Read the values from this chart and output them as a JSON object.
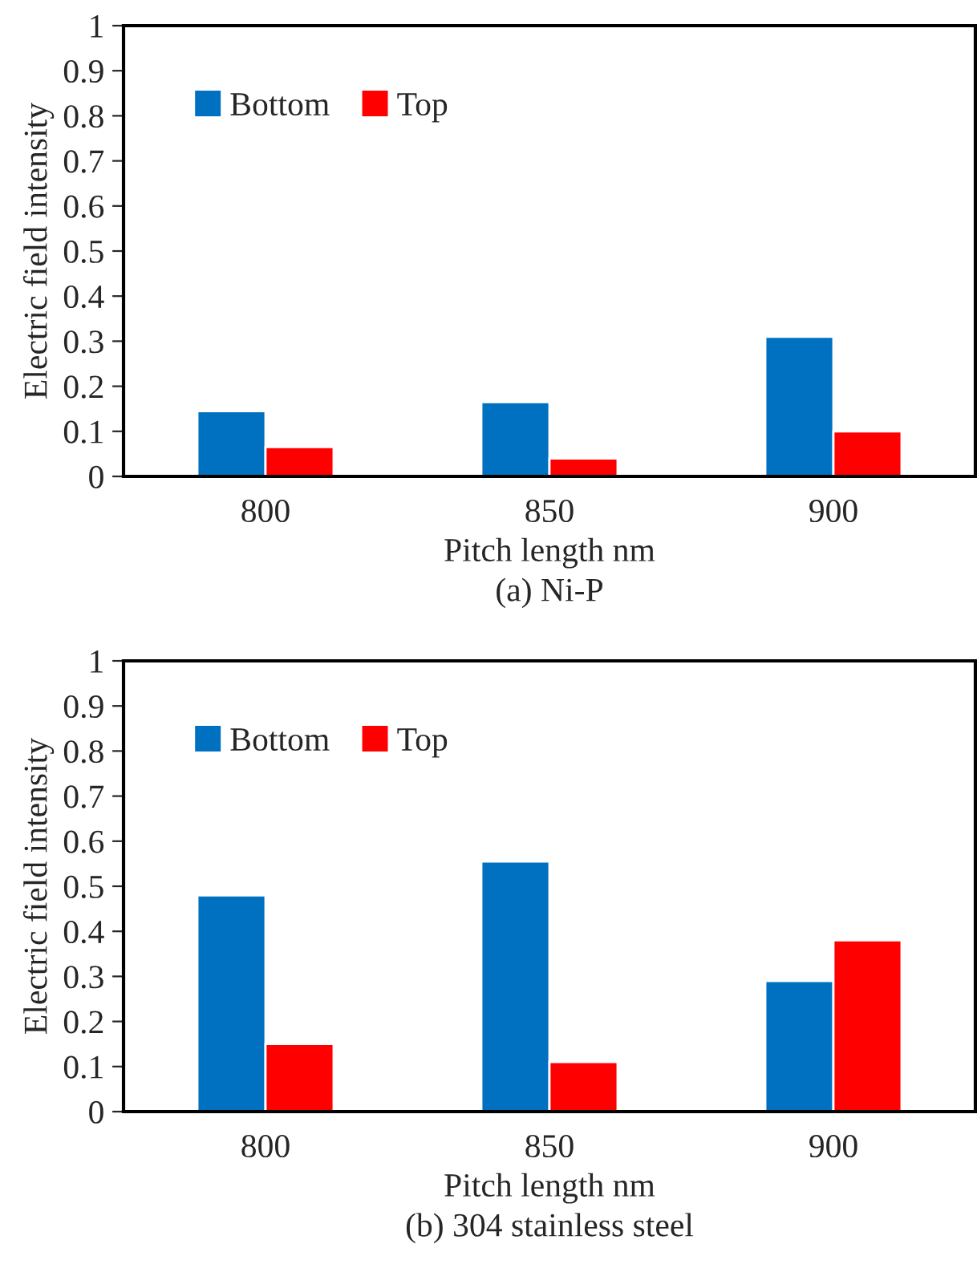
{
  "chart_data": [
    {
      "type": "bar",
      "xlabel": "Pitch length nm",
      "ylabel": "Electric field intensity",
      "categories": [
        "800",
        "850",
        "900"
      ],
      "series": [
        {
          "name": "Bottom",
          "color": "#0070c0",
          "values": [
            0.145,
            0.165,
            0.31
          ]
        },
        {
          "name": "Top",
          "color": "#ff0000",
          "values": [
            0.065,
            0.04,
            0.1
          ]
        }
      ],
      "ylim": [
        0,
        1
      ],
      "yticks": [
        0,
        0.1,
        0.2,
        0.3,
        0.4,
        0.5,
        0.6,
        0.7,
        0.8,
        0.9,
        1
      ],
      "grid": false,
      "legend": "top left",
      "annotations": [
        "(a) Ni-P"
      ]
    },
    {
      "type": "bar",
      "xlabel": "Pitch length nm",
      "ylabel": "Electric field intensity",
      "categories": [
        "800",
        "850",
        "900"
      ],
      "series": [
        {
          "name": "Bottom",
          "color": "#0070c0",
          "values": [
            0.48,
            0.555,
            0.29
          ]
        },
        {
          "name": "Top",
          "color": "#ff0000",
          "values": [
            0.15,
            0.11,
            0.38
          ]
        }
      ],
      "ylim": [
        0,
        1
      ],
      "yticks": [
        0,
        0.1,
        0.2,
        0.3,
        0.4,
        0.5,
        0.6,
        0.7,
        0.8,
        0.9,
        1
      ],
      "grid": false,
      "legend": "top left",
      "annotations": [
        "(b) 304 stainless steel"
      ]
    }
  ]
}
